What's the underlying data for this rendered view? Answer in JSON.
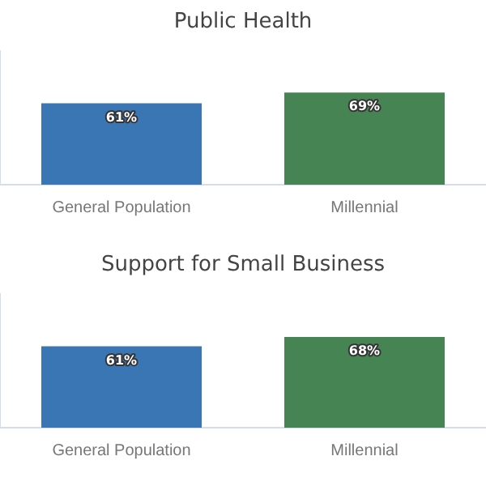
{
  "chart_data": [
    {
      "type": "bar",
      "title": "Public Health",
      "categories": [
        "General Population",
        "Millennial"
      ],
      "colors": [
        "#3a76b4",
        "#468453"
      ],
      "values": [
        61,
        69
      ],
      "value_labels": [
        "61%",
        "69%"
      ],
      "tick_labels": "x",
      "legend": false
    },
    {
      "type": "bar",
      "title": "Support for Small Business",
      "categories": [
        "General Population",
        "Millennial"
      ],
      "colors": [
        "#3a76b4",
        "#468453"
      ],
      "values": [
        61,
        68
      ],
      "value_labels": [
        "61%",
        "68%"
      ],
      "tick_labels": "x",
      "legend": false
    }
  ]
}
